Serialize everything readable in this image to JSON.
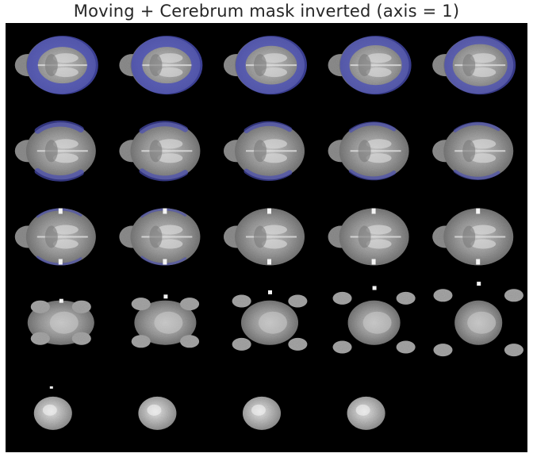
{
  "figure": {
    "title": "Moving + Cerebrum mask inverted (axis = 1)",
    "grid": {
      "rows": 5,
      "cols": 5,
      "filled_slices": 24
    },
    "colors": {
      "background": "#000000",
      "tissue": "#9a9a9a",
      "mask_overlay": "#4a4fb8"
    }
  },
  "slices": [
    {
      "row": 0,
      "col": 0,
      "kind": "masked",
      "mask_level": 1.0
    },
    {
      "row": 0,
      "col": 1,
      "kind": "masked",
      "mask_level": 1.0
    },
    {
      "row": 0,
      "col": 2,
      "kind": "masked",
      "mask_level": 0.9
    },
    {
      "row": 0,
      "col": 3,
      "kind": "masked",
      "mask_level": 0.85
    },
    {
      "row": 0,
      "col": 4,
      "kind": "masked",
      "mask_level": 0.75
    },
    {
      "row": 1,
      "col": 0,
      "kind": "masked",
      "mask_level": 0.55
    },
    {
      "row": 1,
      "col": 1,
      "kind": "masked",
      "mask_level": 0.5
    },
    {
      "row": 1,
      "col": 2,
      "kind": "masked",
      "mask_level": 0.45
    },
    {
      "row": 1,
      "col": 3,
      "kind": "masked",
      "mask_level": 0.35
    },
    {
      "row": 1,
      "col": 4,
      "kind": "masked",
      "mask_level": 0.3
    },
    {
      "row": 2,
      "col": 0,
      "kind": "masked",
      "mask_level": 0.2
    },
    {
      "row": 2,
      "col": 1,
      "kind": "masked",
      "mask_level": 0.12
    },
    {
      "row": 2,
      "col": 2,
      "kind": "plain",
      "mask_level": 0
    },
    {
      "row": 2,
      "col": 3,
      "kind": "plain",
      "mask_level": 0
    },
    {
      "row": 2,
      "col": 4,
      "kind": "plain",
      "mask_level": 0
    },
    {
      "row": 3,
      "col": 0,
      "kind": "fragment",
      "mask_level": 0
    },
    {
      "row": 3,
      "col": 1,
      "kind": "fragment",
      "mask_level": 0
    },
    {
      "row": 3,
      "col": 2,
      "kind": "fragment",
      "mask_level": 0
    },
    {
      "row": 3,
      "col": 3,
      "kind": "fragment",
      "mask_level": 0
    },
    {
      "row": 3,
      "col": 4,
      "kind": "fragment",
      "mask_level": 0
    },
    {
      "row": 4,
      "col": 0,
      "kind": "small",
      "mask_level": 0
    },
    {
      "row": 4,
      "col": 1,
      "kind": "small",
      "mask_level": 0
    },
    {
      "row": 4,
      "col": 2,
      "kind": "small",
      "mask_level": 0
    },
    {
      "row": 4,
      "col": 3,
      "kind": "small",
      "mask_level": 0
    }
  ]
}
